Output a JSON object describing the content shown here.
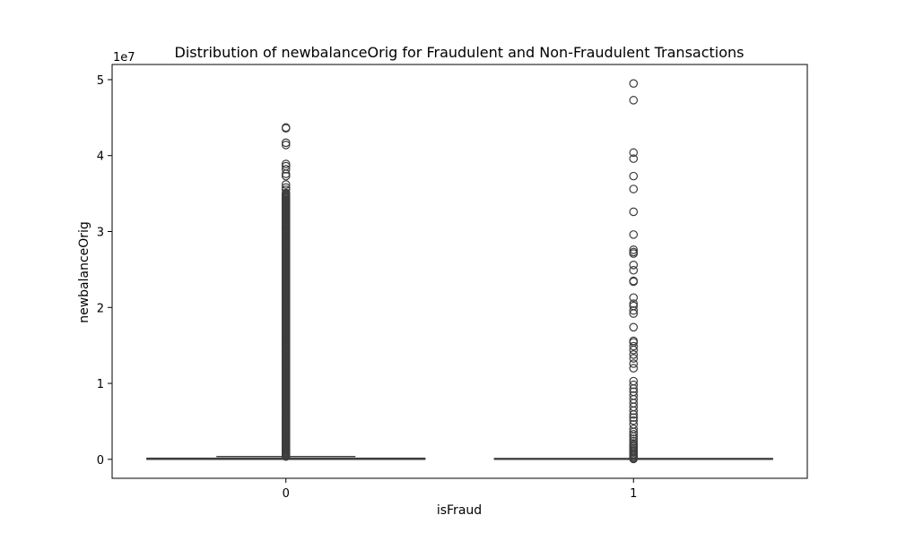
{
  "chart_data": {
    "type": "box",
    "title": "Distribution of newbalanceOrig for Fraudulent and Non-Fraudulent Transactions",
    "xlabel": "isFraud",
    "ylabel": "newbalanceOrig",
    "y_offset_label": "1e7",
    "categories": [
      "0",
      "1"
    ],
    "ylim": [
      -2500000,
      52000000
    ],
    "y_ticks": [
      0,
      10000000,
      20000000,
      30000000,
      40000000,
      50000000
    ],
    "y_tick_labels": [
      "0",
      "1",
      "2",
      "3",
      "4",
      "5"
    ],
    "grid": false,
    "legend": "none",
    "colors": {
      "box_line": "#3d3d3d",
      "box_fill": "#ffffff",
      "axes": "#000000"
    },
    "boxes": [
      {
        "category": "0",
        "whisker_low": 0,
        "q1": 0,
        "median": 0,
        "q3": 150000,
        "whisker_high": 370000,
        "outlier_band": [
          370000,
          35200000
        ],
        "outliers": [
          35500000,
          35800000,
          36200000,
          37300000,
          37600000,
          38200000,
          38600000,
          38900000,
          41400000,
          41700000,
          43600000,
          43700000
        ]
      },
      {
        "category": "1",
        "whisker_low": 0,
        "q1": 0,
        "median": 0,
        "q3": 0,
        "whisker_high": 0,
        "outliers": [
          50000,
          150000,
          300000,
          500000,
          700000,
          900000,
          1100000,
          1300000,
          1500000,
          1700000,
          1900000,
          2100000,
          2400000,
          2700000,
          3000000,
          3300000,
          3600000,
          4000000,
          4600000,
          5100000,
          5500000,
          5900000,
          6400000,
          6900000,
          7400000,
          7900000,
          8400000,
          8900000,
          9300000,
          9800000,
          10300000,
          12000000,
          12600000,
          13300000,
          13800000,
          14400000,
          14900000,
          15400000,
          15600000,
          17400000,
          19200000,
          19600000,
          20200000,
          20500000,
          21300000,
          23400000,
          23500000,
          24900000,
          25600000,
          27100000,
          27300000,
          27600000,
          29600000,
          32600000,
          35600000,
          37300000,
          39600000,
          40400000,
          47300000,
          49500000
        ]
      }
    ]
  }
}
